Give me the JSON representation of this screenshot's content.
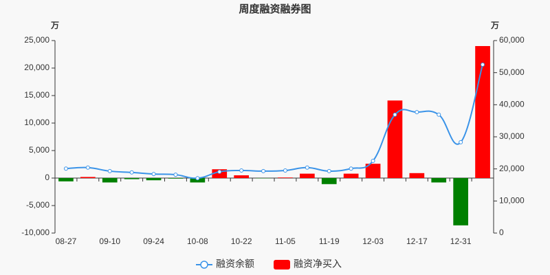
{
  "chart_data": {
    "type": "bar-line",
    "title": "周度融资融券图",
    "ylabel": "万",
    "y2label": "万",
    "categories": [
      "08-27",
      null,
      "09-10",
      null,
      "09-24",
      null,
      "10-08",
      null,
      "10-22",
      null,
      "11-05",
      null,
      "11-19",
      null,
      "12-03",
      null,
      "12-17",
      null,
      "12-31",
      null
    ],
    "series": [
      {
        "name": "融资余额",
        "type": "line",
        "axis": "y2",
        "color": "#3a93e8",
        "values": [
          20100,
          20400,
          19300,
          18900,
          18400,
          18200,
          17100,
          19100,
          19500,
          19300,
          19500,
          20400,
          19300,
          20100,
          22500,
          36900,
          37700,
          36900,
          28300,
          52500
        ]
      },
      {
        "name": "融资净买入",
        "type": "bar",
        "color": "#ff0000",
        "negative_color": "#008000",
        "values": [
          -600,
          200,
          -800,
          -200,
          -400,
          -100,
          -800,
          1600,
          500,
          -50,
          100,
          800,
          -1100,
          800,
          2600,
          14100,
          900,
          -800,
          -8600,
          24000
        ]
      }
    ],
    "ylim": [
      -10000,
      25000
    ],
    "yticks": [
      {
        "value": -10000,
        "label": "-10,000"
      },
      {
        "value": -5000,
        "label": "-5,000"
      },
      0,
      {
        "value": 5000,
        "label": "5,000"
      },
      {
        "value": 10000,
        "label": "10,000"
      },
      {
        "value": 15000,
        "label": "15,000"
      },
      {
        "value": 20000,
        "label": "20,000"
      },
      {
        "value": 25000,
        "label": "25,000"
      }
    ],
    "y2lim": [
      0,
      60000
    ],
    "y2ticks": [
      0,
      {
        "value": 10000,
        "label": "10,000"
      },
      {
        "value": 20000,
        "label": "20,000"
      },
      {
        "value": 30000,
        "label": "30,000"
      },
      {
        "value": 40000,
        "label": "40,000"
      },
      {
        "value": 50000,
        "label": "50,000"
      },
      {
        "value": 60000,
        "label": "60,000"
      }
    ]
  }
}
